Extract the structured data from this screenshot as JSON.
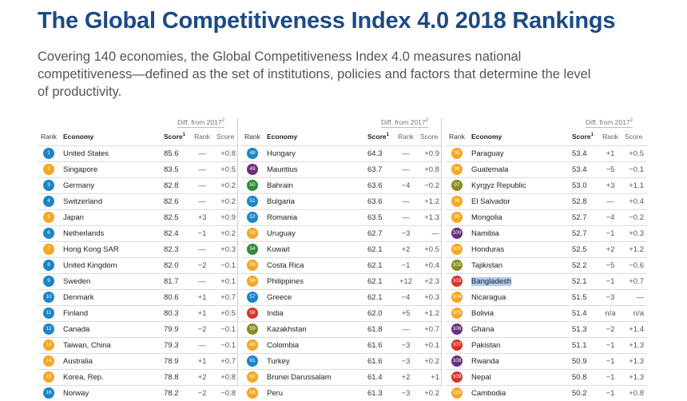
{
  "title": "The Global Competitiveness Index 4.0 2018 Rankings",
  "subtitle": "Covering 140 economies, the Global Competitiveness Index 4.0 measures national competitiveness—defined as the set of institutions, policies and factors that determine the level of productivity.",
  "colors": {
    "title": "#1c4a86",
    "badge_col1": "#0c86c6",
    "badge_col1_alt": "#f5a623",
    "badge_col2": "#6a2a7f",
    "badge_col2_alt": "#2e8a3a",
    "badge_col3": "#f5a623",
    "badge_col3_alt": "#7a7a25",
    "highlight": "#aecdf0"
  },
  "headers": {
    "diff": "Diff. from 2017",
    "diff_note": "2",
    "rank": "Rank",
    "economy": "Economy",
    "score": "Score",
    "score_note": "1",
    "diff_rank": "Rank",
    "diff_score": "Score"
  },
  "columns": [
    {
      "rows": [
        {
          "rank": "1",
          "economy": "United States",
          "score": "85.6",
          "diff_rank": "—",
          "diff_score": "+0.8",
          "badge": "blue"
        },
        {
          "rank": "2",
          "economy": "Singapore",
          "score": "83.5",
          "diff_rank": "—",
          "diff_score": "+0.5",
          "badge": "orange"
        },
        {
          "rank": "3",
          "economy": "Germany",
          "score": "82.8",
          "diff_rank": "—",
          "diff_score": "+0.2",
          "badge": "blue"
        },
        {
          "rank": "4",
          "economy": "Switzerland",
          "score": "82.6",
          "diff_rank": "—",
          "diff_score": "+0.2",
          "badge": "blue"
        },
        {
          "rank": "5",
          "economy": "Japan",
          "score": "82.5",
          "diff_rank": "+3",
          "diff_score": "+0.9",
          "badge": "orange"
        },
        {
          "rank": "6",
          "economy": "Netherlands",
          "score": "82.4",
          "diff_rank": "−1",
          "diff_score": "+0.2",
          "badge": "blue"
        },
        {
          "rank": "7",
          "economy": "Hong Kong SAR",
          "score": "82.3",
          "diff_rank": "—",
          "diff_score": "+0.3",
          "badge": "orange"
        },
        {
          "rank": "8",
          "economy": "United Kingdom",
          "score": "82.0",
          "diff_rank": "−2",
          "diff_score": "−0.1",
          "badge": "blue"
        },
        {
          "rank": "9",
          "economy": "Sweden",
          "score": "81.7",
          "diff_rank": "—",
          "diff_score": "+0.1",
          "badge": "blue"
        },
        {
          "rank": "10",
          "economy": "Denmark",
          "score": "80.6",
          "diff_rank": "+1",
          "diff_score": "+0.7",
          "badge": "blue"
        },
        {
          "rank": "11",
          "economy": "Finland",
          "score": "80.3",
          "diff_rank": "+1",
          "diff_score": "+0.5",
          "badge": "blue"
        },
        {
          "rank": "12",
          "economy": "Canada",
          "score": "79.9",
          "diff_rank": "−2",
          "diff_score": "−0.1",
          "badge": "blue"
        },
        {
          "rank": "13",
          "economy": "Taiwan, China",
          "score": "79.3",
          "diff_rank": "—",
          "diff_score": "−0.1",
          "badge": "orange"
        },
        {
          "rank": "14",
          "economy": "Australia",
          "score": "78.9",
          "diff_rank": "+1",
          "diff_score": "+0.7",
          "badge": "orange"
        },
        {
          "rank": "15",
          "economy": "Korea, Rep.",
          "score": "78.8",
          "diff_rank": "+2",
          "diff_score": "+0.8",
          "badge": "orange"
        },
        {
          "rank": "16",
          "economy": "Norway",
          "score": "78.2",
          "diff_rank": "−2",
          "diff_score": "−0.8",
          "badge": "blue"
        }
      ]
    },
    {
      "rows": [
        {
          "rank": "48",
          "economy": "Hungary",
          "score": "64.3",
          "diff_rank": "—",
          "diff_score": "+0.9",
          "badge": "blue"
        },
        {
          "rank": "49",
          "economy": "Mauritius",
          "score": "63.7",
          "diff_rank": "—",
          "diff_score": "+0.8",
          "badge": "purple"
        },
        {
          "rank": "50",
          "economy": "Bahrain",
          "score": "63.6",
          "diff_rank": "−4",
          "diff_score": "−0.2",
          "badge": "green"
        },
        {
          "rank": "51",
          "economy": "Bulgaria",
          "score": "63.6",
          "diff_rank": "—",
          "diff_score": "+1.2",
          "badge": "blue"
        },
        {
          "rank": "52",
          "economy": "Romania",
          "score": "63.5",
          "diff_rank": "—",
          "diff_score": "+1.3",
          "badge": "blue"
        },
        {
          "rank": "53",
          "economy": "Uruguay",
          "score": "62.7",
          "diff_rank": "−3",
          "diff_score": "—",
          "badge": "orange"
        },
        {
          "rank": "54",
          "economy": "Kuwait",
          "score": "62.1",
          "diff_rank": "+2",
          "diff_score": "+0.5",
          "badge": "green"
        },
        {
          "rank": "55",
          "economy": "Costa Rica",
          "score": "62.1",
          "diff_rank": "−1",
          "diff_score": "+0.4",
          "badge": "orange"
        },
        {
          "rank": "56",
          "economy": "Philippines",
          "score": "62.1",
          "diff_rank": "+12",
          "diff_score": "+2.3",
          "badge": "orange"
        },
        {
          "rank": "57",
          "economy": "Greece",
          "score": "62.1",
          "diff_rank": "−4",
          "diff_score": "+0.3",
          "badge": "blue"
        },
        {
          "rank": "58",
          "economy": "India",
          "score": "62.0",
          "diff_rank": "+5",
          "diff_score": "+1.2",
          "badge": "red"
        },
        {
          "rank": "59",
          "economy": "Kazakhstan",
          "score": "61.8",
          "diff_rank": "—",
          "diff_score": "+0.7",
          "badge": "olive"
        },
        {
          "rank": "60",
          "economy": "Colombia",
          "score": "61.6",
          "diff_rank": "−3",
          "diff_score": "+0.1",
          "badge": "orange"
        },
        {
          "rank": "61",
          "economy": "Turkey",
          "score": "61.6",
          "diff_rank": "−3",
          "diff_score": "+0.2",
          "badge": "blue"
        },
        {
          "rank": "62",
          "economy": "Brunei Darussalam",
          "score": "61.4",
          "diff_rank": "+2",
          "diff_score": "+1",
          "badge": "orange"
        },
        {
          "rank": "63",
          "economy": "Peru",
          "score": "61.3",
          "diff_rank": "−3",
          "diff_score": "+0.2",
          "badge": "orange"
        }
      ]
    },
    {
      "rows": [
        {
          "rank": "95",
          "economy": "Paraguay",
          "score": "53.4",
          "diff_rank": "+1",
          "diff_score": "+0.5",
          "badge": "orange"
        },
        {
          "rank": "96",
          "economy": "Guatemala",
          "score": "53.4",
          "diff_rank": "−5",
          "diff_score": "−0.1",
          "badge": "orange"
        },
        {
          "rank": "97",
          "economy": "Kyrgyz Republic",
          "score": "53.0",
          "diff_rank": "+3",
          "diff_score": "+1.1",
          "badge": "olive"
        },
        {
          "rank": "98",
          "economy": "El Salvador",
          "score": "52.8",
          "diff_rank": "—",
          "diff_score": "+0.4",
          "badge": "orange"
        },
        {
          "rank": "99",
          "economy": "Mongolia",
          "score": "52.7",
          "diff_rank": "−4",
          "diff_score": "−0.2",
          "badge": "orange"
        },
        {
          "rank": "100",
          "economy": "Namibia",
          "score": "52.7",
          "diff_rank": "−1",
          "diff_score": "+0.3",
          "badge": "purple"
        },
        {
          "rank": "101",
          "economy": "Honduras",
          "score": "52.5",
          "diff_rank": "+2",
          "diff_score": "+1.2",
          "badge": "orange"
        },
        {
          "rank": "102",
          "economy": "Tajikistan",
          "score": "52.2",
          "diff_rank": "−5",
          "diff_score": "−0.6",
          "badge": "olive"
        },
        {
          "rank": "103",
          "economy": "Bangladesh",
          "score": "52.1",
          "diff_rank": "−1",
          "diff_score": "+0.7",
          "badge": "red",
          "highlight": true
        },
        {
          "rank": "104",
          "economy": "Nicaragua",
          "score": "51.5",
          "diff_rank": "−3",
          "diff_score": "—",
          "badge": "orange"
        },
        {
          "rank": "105",
          "economy": "Bolivia",
          "score": "51.4",
          "diff_rank": "n/a",
          "diff_score": "n/a",
          "badge": "orange"
        },
        {
          "rank": "106",
          "economy": "Ghana",
          "score": "51.3",
          "diff_rank": "−2",
          "diff_score": "+1.4",
          "badge": "purple"
        },
        {
          "rank": "107",
          "economy": "Pakistan",
          "score": "51.1",
          "diff_rank": "−1",
          "diff_score": "+1.3",
          "badge": "red"
        },
        {
          "rank": "108",
          "economy": "Rwanda",
          "score": "50.9",
          "diff_rank": "−1",
          "diff_score": "+1.3",
          "badge": "purple"
        },
        {
          "rank": "109",
          "economy": "Nepal",
          "score": "50.8",
          "diff_rank": "−1",
          "diff_score": "+1.3",
          "badge": "red"
        },
        {
          "rank": "110",
          "economy": "Cambodia",
          "score": "50.2",
          "diff_rank": "−1",
          "diff_score": "+0.8",
          "badge": "orange"
        }
      ]
    }
  ],
  "badge_colors": {
    "blue": "#1a85c8",
    "orange": "#f5a623",
    "purple": "#6b2d7e",
    "green": "#2f8b3b",
    "red": "#d7332a",
    "olive": "#8a8a22"
  }
}
